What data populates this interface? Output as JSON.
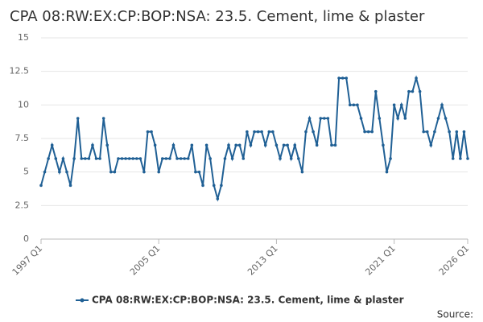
{
  "chart_data": {
    "type": "line",
    "title": "CPA 08:RW:EX:CP:BOP:NSA: 23.5. Cement, lime & plaster",
    "categories": [
      "1997 Q1",
      null,
      null,
      null,
      null,
      null,
      null,
      null,
      null,
      null,
      null,
      null,
      null,
      null,
      null,
      null,
      null,
      null,
      null,
      null,
      null,
      null,
      null,
      null,
      null,
      null,
      null,
      null,
      null,
      null,
      null,
      null,
      "2005 Q1",
      null,
      null,
      null,
      null,
      null,
      null,
      null,
      null,
      null,
      null,
      null,
      null,
      null,
      null,
      null,
      null,
      null,
      null,
      null,
      null,
      null,
      null,
      null,
      null,
      null,
      null,
      null,
      null,
      null,
      null,
      null,
      "2013 Q1",
      null,
      null,
      null,
      null,
      null,
      null,
      null,
      null,
      null,
      null,
      null,
      null,
      null,
      null,
      null,
      null,
      null,
      null,
      null,
      null,
      null,
      null,
      null,
      null,
      null,
      null,
      null,
      null,
      null,
      null,
      null,
      "2021 Q1",
      null,
      null,
      null,
      null,
      null,
      null,
      null,
      null,
      null,
      null,
      null,
      null,
      null,
      null,
      null,
      null,
      null,
      null,
      null,
      "2026 Q1"
    ],
    "series": [
      {
        "name": "CPA 08:RW:EX:CP:BOP:NSA: 23.5. Cement, lime & plaster",
        "color": "#206095",
        "values": [
          4,
          5,
          6,
          7,
          6,
          5,
          6,
          5,
          4,
          6,
          9,
          6,
          6,
          6,
          7,
          6,
          6,
          9,
          7,
          5,
          5,
          6,
          6,
          6,
          6,
          6,
          6,
          6,
          5,
          8,
          8,
          7,
          5,
          6,
          6,
          6,
          7,
          6,
          6,
          6,
          6,
          7,
          5,
          5,
          4,
          7,
          6,
          4,
          3,
          4,
          6,
          7,
          6,
          7,
          7,
          6,
          8,
          7,
          8,
          8,
          8,
          7,
          8,
          8,
          7,
          6,
          7,
          7,
          6,
          7,
          6,
          5,
          8,
          9,
          8,
          7,
          9,
          9,
          9,
          7,
          7,
          12,
          12,
          12,
          10,
          10,
          10,
          9,
          8,
          8,
          8,
          11,
          9,
          7,
          5,
          6,
          10,
          9,
          10,
          9,
          11,
          11,
          12,
          11,
          8,
          8,
          7,
          8,
          9,
          10,
          9,
          8,
          6,
          8,
          6,
          8,
          6
        ]
      }
    ],
    "ylim": [
      0,
      15
    ],
    "yticks": [
      0,
      2.5,
      5,
      7.5,
      10,
      12.5,
      15
    ],
    "grid": true,
    "legend": "bottom",
    "source": "Source:"
  }
}
